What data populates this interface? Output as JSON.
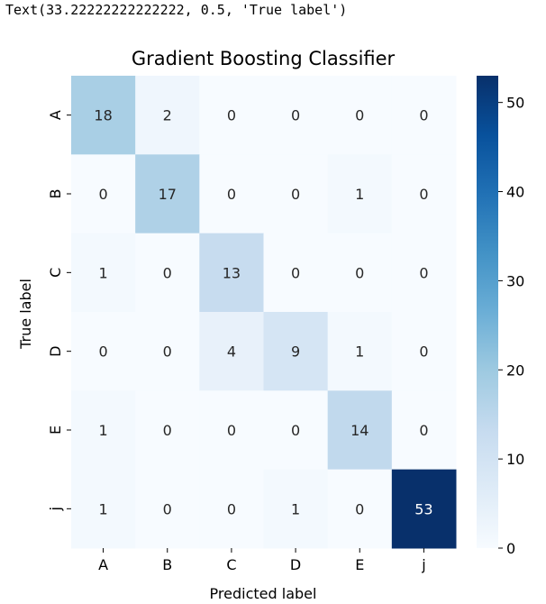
{
  "output_text": "Text(33.22222222222222, 0.5, 'True label')",
  "chart_data": {
    "type": "heatmap",
    "title": "Gradient Boosting Classifier",
    "xlabel": "Predicted label",
    "ylabel": "True label",
    "x_categories": [
      "A",
      "B",
      "C",
      "D",
      "E",
      "j"
    ],
    "y_categories": [
      "A",
      "B",
      "C",
      "D",
      "E",
      "j"
    ],
    "values": [
      [
        18,
        2,
        0,
        0,
        0,
        0
      ],
      [
        0,
        17,
        0,
        0,
        1,
        0
      ],
      [
        1,
        0,
        13,
        0,
        0,
        0
      ],
      [
        0,
        0,
        4,
        9,
        1,
        0
      ],
      [
        1,
        0,
        0,
        0,
        14,
        0
      ],
      [
        1,
        0,
        0,
        1,
        0,
        53
      ]
    ],
    "colormap": "Blues",
    "colorbar": {
      "range": [
        0,
        53
      ],
      "ticks": [
        0,
        10,
        20,
        30,
        40,
        50
      ],
      "tick_labels": [
        "0",
        "10",
        "20",
        "30",
        "40",
        "50"
      ]
    }
  }
}
